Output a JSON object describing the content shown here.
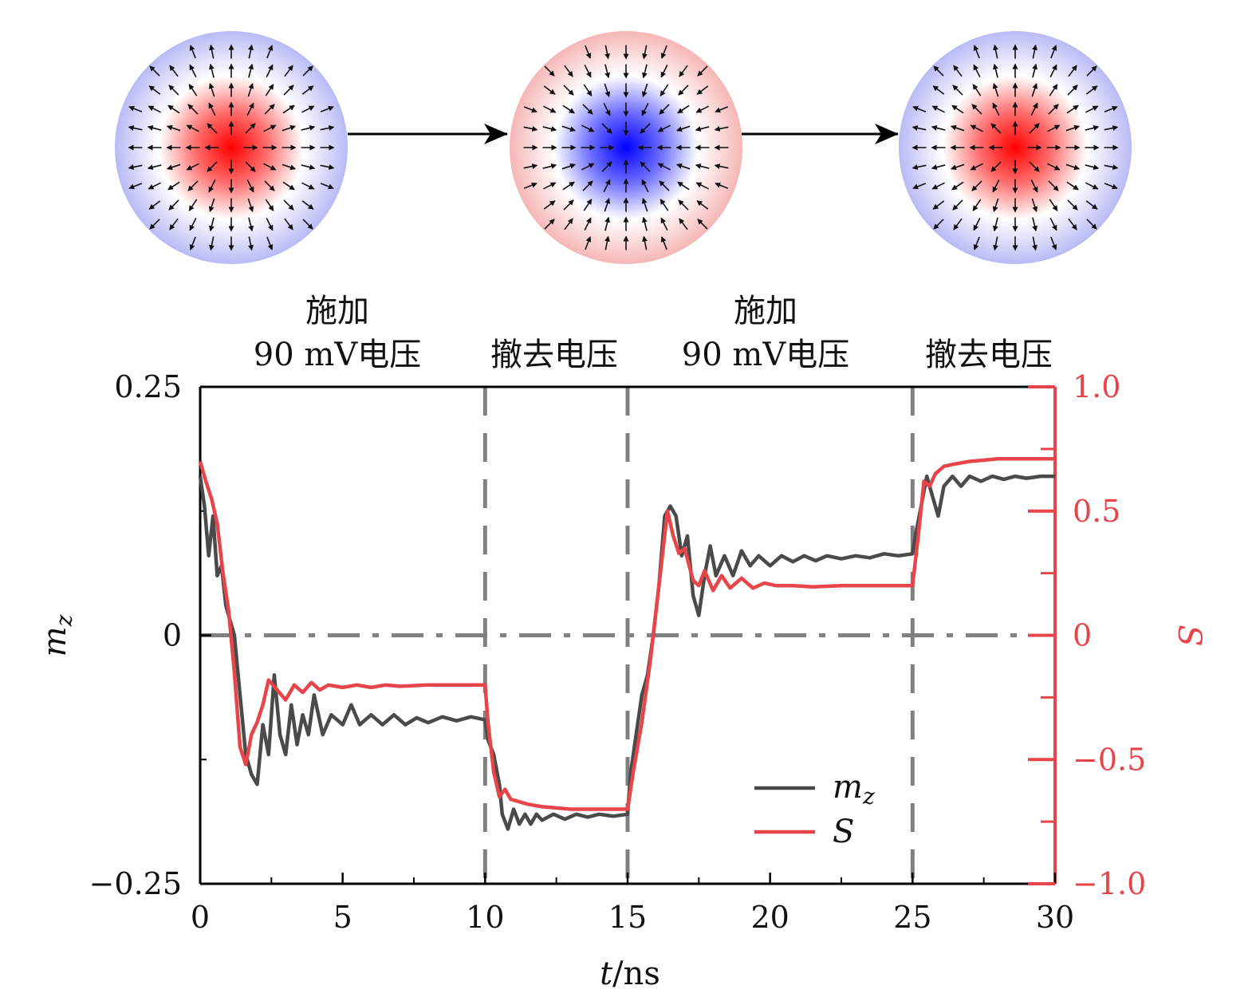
{
  "colors": {
    "mz": "#4a4a4a",
    "S": "#e8454a",
    "guide": "#808080",
    "arrow": "#000000",
    "core_positive": "#ff0000",
    "core_negative": "#0000ff"
  },
  "skyrmions": [
    {
      "core_sign": "positive"
    },
    {
      "core_sign": "negative"
    },
    {
      "core_sign": "positive"
    }
  ],
  "annotations": [
    {
      "line1": "施加",
      "line2": "90 mV电压"
    },
    {
      "line1": "",
      "line2": "撤去电压"
    },
    {
      "line1": "施加",
      "line2": "90 mV电压"
    },
    {
      "line1": "",
      "line2": "撤去电压"
    }
  ],
  "chart_data": {
    "type": "line",
    "xlabel": "t/ns",
    "ylabel_left": "m_z",
    "ylabel_right": "S",
    "xlim": [
      0,
      30
    ],
    "ylim_left": [
      -0.25,
      0.25
    ],
    "ylim_right": [
      -1.0,
      1.0
    ],
    "x_ticks": [
      "0",
      "5",
      "10",
      "15",
      "20",
      "25",
      "30"
    ],
    "y_left_ticks": [
      "0.25",
      "0",
      "−0.25"
    ],
    "y_right_ticks": [
      "1.0",
      "0.5",
      "0",
      "−0.5",
      "−1.0"
    ],
    "vlines": [
      10,
      15,
      25
    ],
    "hline": 0,
    "legend": {
      "position": "lower-right",
      "entries": [
        {
          "label": "m_z",
          "series": "mz"
        },
        {
          "label": "S",
          "series": "S"
        }
      ]
    },
    "series": [
      {
        "name": "m_z",
        "axis": "left",
        "points": [
          [
            0,
            0.16
          ],
          [
            0.15,
            0.13
          ],
          [
            0.3,
            0.08
          ],
          [
            0.45,
            0.12
          ],
          [
            0.6,
            0.06
          ],
          [
            0.75,
            0.07
          ],
          [
            0.9,
            0.03
          ],
          [
            1.0,
            0.02
          ],
          [
            1.2,
            0.0
          ],
          [
            1.4,
            -0.06
          ],
          [
            1.6,
            -0.12
          ],
          [
            1.8,
            -0.14
          ],
          [
            2.0,
            -0.15
          ],
          [
            2.2,
            -0.09
          ],
          [
            2.4,
            -0.12
          ],
          [
            2.6,
            -0.04
          ],
          [
            2.8,
            -0.1
          ],
          [
            3.0,
            -0.12
          ],
          [
            3.2,
            -0.07
          ],
          [
            3.4,
            -0.11
          ],
          [
            3.6,
            -0.08
          ],
          [
            3.8,
            -0.1
          ],
          [
            4.0,
            -0.06
          ],
          [
            4.3,
            -0.1
          ],
          [
            4.6,
            -0.08
          ],
          [
            5.0,
            -0.09
          ],
          [
            5.3,
            -0.07
          ],
          [
            5.6,
            -0.09
          ],
          [
            6.0,
            -0.08
          ],
          [
            6.4,
            -0.09
          ],
          [
            6.8,
            -0.08
          ],
          [
            7.2,
            -0.09
          ],
          [
            7.6,
            -0.083
          ],
          [
            8.0,
            -0.088
          ],
          [
            8.5,
            -0.082
          ],
          [
            9.0,
            -0.086
          ],
          [
            9.5,
            -0.082
          ],
          [
            10.0,
            -0.085
          ],
          [
            10.1,
            -0.105
          ],
          [
            10.3,
            -0.12
          ],
          [
            10.5,
            -0.15
          ],
          [
            10.6,
            -0.18
          ],
          [
            10.8,
            -0.195
          ],
          [
            11.0,
            -0.175
          ],
          [
            11.2,
            -0.19
          ],
          [
            11.4,
            -0.18
          ],
          [
            11.6,
            -0.19
          ],
          [
            11.8,
            -0.18
          ],
          [
            12.0,
            -0.186
          ],
          [
            12.4,
            -0.18
          ],
          [
            12.8,
            -0.185
          ],
          [
            13.2,
            -0.18
          ],
          [
            13.6,
            -0.183
          ],
          [
            14.0,
            -0.18
          ],
          [
            14.5,
            -0.182
          ],
          [
            15.0,
            -0.18
          ],
          [
            15.1,
            -0.14
          ],
          [
            15.3,
            -0.1
          ],
          [
            15.5,
            -0.06
          ],
          [
            15.7,
            -0.04
          ],
          [
            15.9,
            0.0
          ],
          [
            16.1,
            0.05
          ],
          [
            16.3,
            0.12
          ],
          [
            16.5,
            0.13
          ],
          [
            16.7,
            0.12
          ],
          [
            16.9,
            0.08
          ],
          [
            17.1,
            0.1
          ],
          [
            17.3,
            0.04
          ],
          [
            17.5,
            0.02
          ],
          [
            17.7,
            0.06
          ],
          [
            17.9,
            0.09
          ],
          [
            18.1,
            0.06
          ],
          [
            18.4,
            0.08
          ],
          [
            18.7,
            0.06
          ],
          [
            19.0,
            0.085
          ],
          [
            19.3,
            0.07
          ],
          [
            19.6,
            0.08
          ],
          [
            20.0,
            0.07
          ],
          [
            20.4,
            0.08
          ],
          [
            20.8,
            0.074
          ],
          [
            21.2,
            0.08
          ],
          [
            21.6,
            0.075
          ],
          [
            22.0,
            0.08
          ],
          [
            22.5,
            0.077
          ],
          [
            23.0,
            0.08
          ],
          [
            23.5,
            0.078
          ],
          [
            24.0,
            0.082
          ],
          [
            24.5,
            0.08
          ],
          [
            25.0,
            0.082
          ],
          [
            25.1,
            0.1
          ],
          [
            25.3,
            0.13
          ],
          [
            25.5,
            0.16
          ],
          [
            25.7,
            0.14
          ],
          [
            25.9,
            0.12
          ],
          [
            26.1,
            0.15
          ],
          [
            26.4,
            0.16
          ],
          [
            26.7,
            0.15
          ],
          [
            27.0,
            0.16
          ],
          [
            27.4,
            0.155
          ],
          [
            27.8,
            0.16
          ],
          [
            28.2,
            0.157
          ],
          [
            28.6,
            0.16
          ],
          [
            29.0,
            0.158
          ],
          [
            29.5,
            0.16
          ],
          [
            30.0,
            0.16
          ]
        ]
      },
      {
        "name": "S",
        "axis": "right",
        "points": [
          [
            0,
            0.7
          ],
          [
            0.2,
            0.62
          ],
          [
            0.4,
            0.55
          ],
          [
            0.6,
            0.45
          ],
          [
            0.8,
            0.25
          ],
          [
            1.0,
            0.1
          ],
          [
            1.2,
            -0.15
          ],
          [
            1.4,
            -0.45
          ],
          [
            1.6,
            -0.52
          ],
          [
            1.8,
            -0.4
          ],
          [
            2.0,
            -0.35
          ],
          [
            2.2,
            -0.28
          ],
          [
            2.4,
            -0.18
          ],
          [
            2.7,
            -0.22
          ],
          [
            3.0,
            -0.26
          ],
          [
            3.3,
            -0.2
          ],
          [
            3.6,
            -0.23
          ],
          [
            3.9,
            -0.19
          ],
          [
            4.2,
            -0.22
          ],
          [
            4.5,
            -0.2
          ],
          [
            5.0,
            -0.21
          ],
          [
            5.5,
            -0.2
          ],
          [
            6.0,
            -0.21
          ],
          [
            6.5,
            -0.2
          ],
          [
            7.0,
            -0.205
          ],
          [
            8.0,
            -0.2
          ],
          [
            9.0,
            -0.2
          ],
          [
            10.0,
            -0.2
          ],
          [
            10.1,
            -0.35
          ],
          [
            10.3,
            -0.55
          ],
          [
            10.5,
            -0.65
          ],
          [
            10.7,
            -0.62
          ],
          [
            10.9,
            -0.66
          ],
          [
            11.2,
            -0.67
          ],
          [
            11.5,
            -0.68
          ],
          [
            12.0,
            -0.69
          ],
          [
            13.0,
            -0.7
          ],
          [
            14.0,
            -0.7
          ],
          [
            15.0,
            -0.7
          ],
          [
            15.2,
            -0.55
          ],
          [
            15.5,
            -0.35
          ],
          [
            15.8,
            -0.1
          ],
          [
            16.0,
            0.1
          ],
          [
            16.2,
            0.3
          ],
          [
            16.4,
            0.5
          ],
          [
            16.6,
            0.4
          ],
          [
            16.8,
            0.33
          ],
          [
            17.0,
            0.35
          ],
          [
            17.3,
            0.22
          ],
          [
            17.5,
            0.2
          ],
          [
            17.7,
            0.26
          ],
          [
            18.0,
            0.18
          ],
          [
            18.3,
            0.24
          ],
          [
            18.6,
            0.19
          ],
          [
            19.0,
            0.23
          ],
          [
            19.4,
            0.19
          ],
          [
            19.8,
            0.21
          ],
          [
            20.2,
            0.2
          ],
          [
            20.8,
            0.2
          ],
          [
            21.5,
            0.195
          ],
          [
            22.5,
            0.2
          ],
          [
            23.5,
            0.2
          ],
          [
            25.0,
            0.2
          ],
          [
            25.2,
            0.4
          ],
          [
            25.4,
            0.62
          ],
          [
            25.6,
            0.6
          ],
          [
            25.8,
            0.65
          ],
          [
            26.1,
            0.68
          ],
          [
            26.5,
            0.69
          ],
          [
            27.0,
            0.7
          ],
          [
            28.0,
            0.71
          ],
          [
            29.0,
            0.71
          ],
          [
            30.0,
            0.71
          ]
        ]
      }
    ]
  }
}
